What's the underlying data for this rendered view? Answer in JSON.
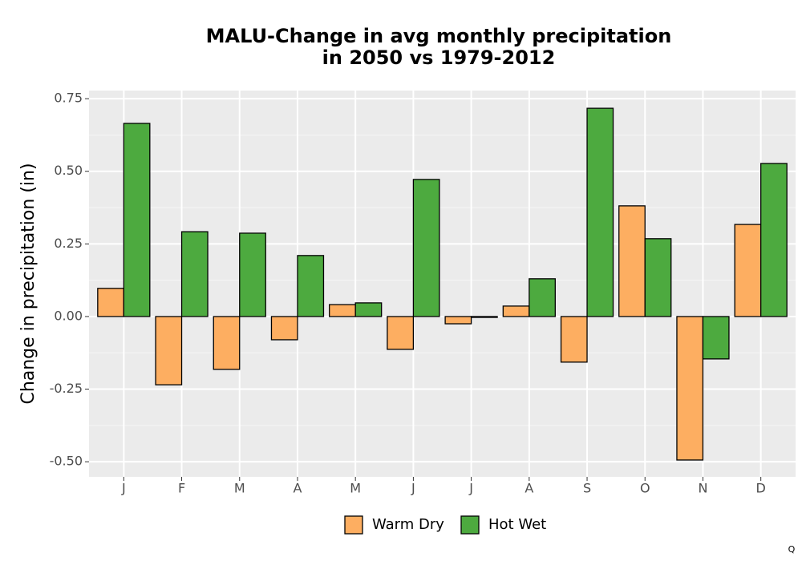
{
  "chart_data": {
    "type": "bar",
    "title": [
      "MALU-Change in avg monthly precipitation",
      "in 2050 vs 1979-2012"
    ],
    "y_label": "Change in precipitation (in)",
    "categories": [
      "J",
      "F",
      "M",
      "A",
      "M",
      "J",
      "J",
      "A",
      "S",
      "O",
      "N",
      "D"
    ],
    "series": [
      {
        "name": "Warm Dry",
        "color": "#fdae61",
        "values": [
          0.097,
          -0.235,
          -0.182,
          -0.08,
          0.041,
          -0.113,
          -0.025,
          0.036,
          -0.157,
          0.381,
          -0.494,
          0.317
        ]
      },
      {
        "name": "Hot Wet",
        "color": "#4daa3f",
        "values": [
          0.665,
          0.292,
          0.287,
          0.21,
          0.047,
          0.472,
          -0.003,
          0.13,
          0.717,
          0.268,
          -0.146,
          0.527
        ]
      }
    ],
    "ylim": [
      -0.552,
      0.778
    ],
    "yticks": [
      {
        "value": -0.5,
        "label": "-0.50"
      },
      {
        "value": -0.25,
        "label": "-0.25"
      },
      {
        "value": 0,
        "label": "0.00"
      },
      {
        "value": 0.25,
        "label": "0.25"
      },
      {
        "value": 0.5,
        "label": "0.50"
      },
      {
        "value": 0.75,
        "label": "0.75"
      }
    ],
    "y_minor_ticks": [
      -0.375,
      -0.125,
      0.125,
      0.375,
      0.625
    ],
    "grid": true,
    "legend_position": "bottom",
    "caption": "Q"
  }
}
